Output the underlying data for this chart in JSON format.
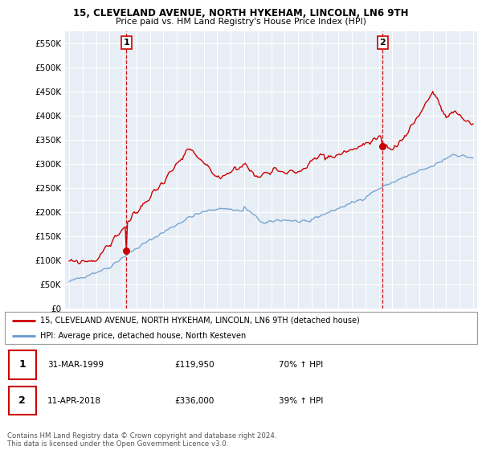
{
  "title": "15, CLEVELAND AVENUE, NORTH HYKEHAM, LINCOLN, LN6 9TH",
  "subtitle": "Price paid vs. HM Land Registry's House Price Index (HPI)",
  "legend_line1": "15, CLEVELAND AVENUE, NORTH HYKEHAM, LINCOLN, LN6 9TH (detached house)",
  "legend_line2": "HPI: Average price, detached house, North Kesteven",
  "footnote": "Contains HM Land Registry data © Crown copyright and database right 2024.\nThis data is licensed under the Open Government Licence v3.0.",
  "sale1_label": "1",
  "sale1_date": "31-MAR-1999",
  "sale1_price": "£119,950",
  "sale1_hpi": "70% ↑ HPI",
  "sale2_label": "2",
  "sale2_date": "11-APR-2018",
  "sale2_price": "£336,000",
  "sale2_hpi": "39% ↑ HPI",
  "sale1_year": 1999.25,
  "sale1_value": 119950,
  "sale2_year": 2018.28,
  "sale2_value": 336000,
  "ylim": [
    0,
    575000
  ],
  "yticks": [
    0,
    50000,
    100000,
    150000,
    200000,
    250000,
    300000,
    350000,
    400000,
    450000,
    500000,
    550000
  ],
  "red_color": "#cc0000",
  "blue_color": "#6699cc",
  "plot_bg_color": "#e8eef5",
  "background_color": "#ffffff",
  "grid_color": "#ffffff",
  "vline_color": "#cc0000"
}
